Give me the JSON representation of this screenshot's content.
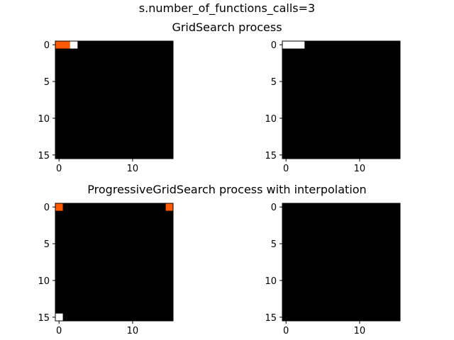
{
  "figure": {
    "suptitle": "s.number_of_functions_calls=3",
    "row_titles": [
      "GridSearch process",
      "ProgressiveGridSearch process with interpolation"
    ]
  },
  "chart_data": [
    {
      "type": "heatmap",
      "panel": "top-left",
      "grid_size": 16,
      "background_color": "#000000",
      "xticks": [
        0,
        10
      ],
      "yticks": [
        0,
        5,
        10,
        15
      ],
      "xlim": [
        -0.5,
        15.5
      ],
      "ylim": [
        15.5,
        -0.5
      ],
      "cells": [
        {
          "row": 0,
          "col": 0,
          "color": "#ff5a00"
        },
        {
          "row": 0,
          "col": 1,
          "color": "#ff5a00"
        },
        {
          "row": 0,
          "col": 2,
          "color": "#ffffff"
        }
      ]
    },
    {
      "type": "heatmap",
      "panel": "top-right",
      "grid_size": 16,
      "background_color": "#000000",
      "xticks": [
        0,
        10
      ],
      "yticks": [
        0,
        5,
        10,
        15
      ],
      "xlim": [
        -0.5,
        15.5
      ],
      "ylim": [
        15.5,
        -0.5
      ],
      "cells": [
        {
          "row": 0,
          "col": 0,
          "color": "#ffffff"
        },
        {
          "row": 0,
          "col": 1,
          "color": "#ffffff"
        },
        {
          "row": 0,
          "col": 2,
          "color": "#ffffff"
        }
      ]
    },
    {
      "type": "heatmap",
      "panel": "bottom-left",
      "grid_size": 16,
      "background_color": "#000000",
      "xticks": [
        0,
        10
      ],
      "yticks": [
        0,
        5,
        10,
        15
      ],
      "xlim": [
        -0.5,
        15.5
      ],
      "ylim": [
        15.5,
        -0.5
      ],
      "cells": [
        {
          "row": 0,
          "col": 0,
          "color": "#ff5a00"
        },
        {
          "row": 0,
          "col": 15,
          "color": "#ff5a00"
        },
        {
          "row": 15,
          "col": 0,
          "color": "#ffffff"
        }
      ]
    },
    {
      "type": "heatmap",
      "panel": "bottom-right",
      "grid_size": 16,
      "background_color": "#000000",
      "xticks": [
        0,
        10
      ],
      "yticks": [
        0,
        5,
        10,
        15
      ],
      "xlim": [
        -0.5,
        15.5
      ],
      "ylim": [
        15.5,
        -0.5
      ],
      "cells": []
    }
  ]
}
